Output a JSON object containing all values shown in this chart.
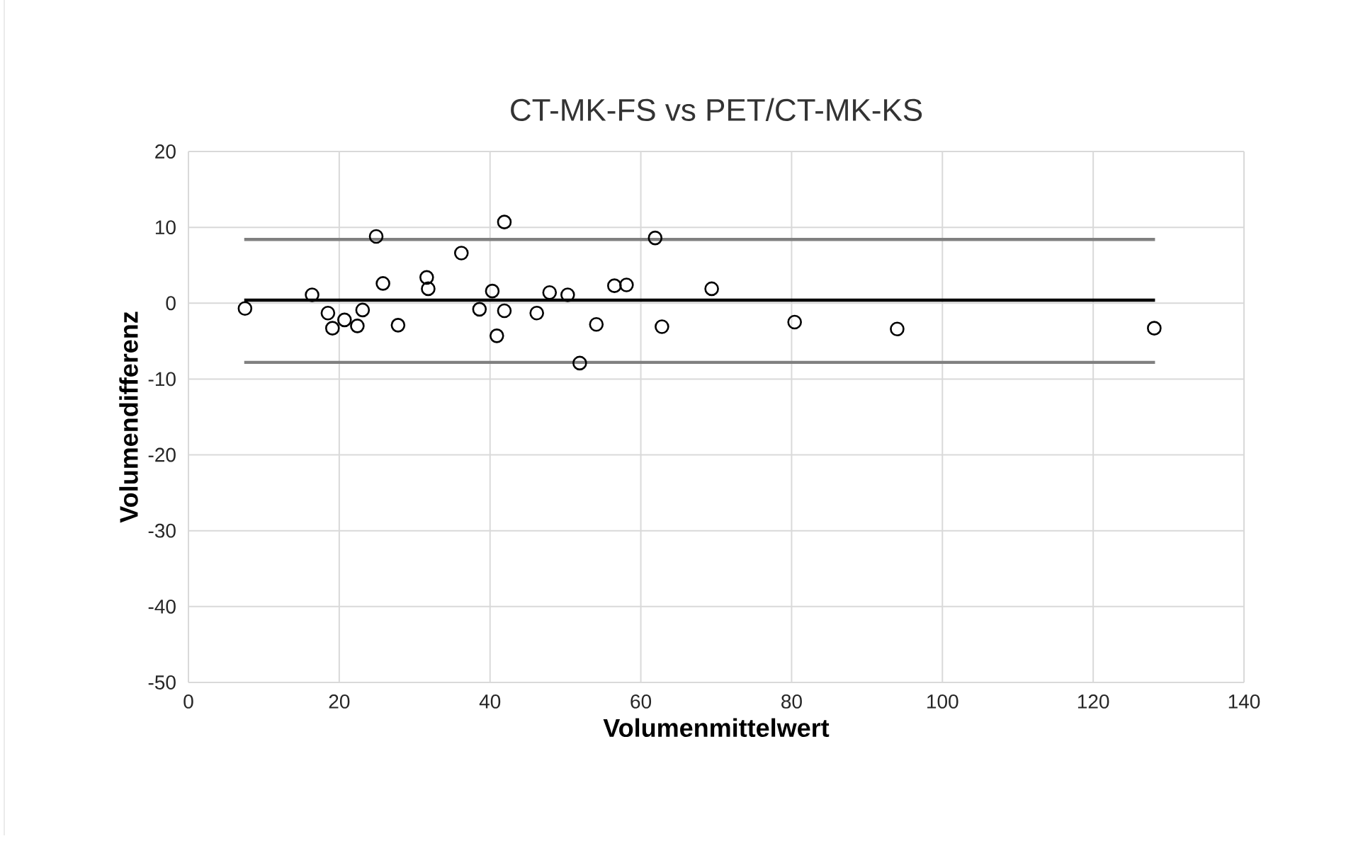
{
  "chart_data": {
    "type": "scatter",
    "title": "CT-MK-FS vs PET/CT-MK-KS",
    "xlabel": "Volumenmittelwert",
    "ylabel": "Volumendifferenz",
    "xlim": [
      0,
      140
    ],
    "ylim": [
      -50,
      20
    ],
    "xticks": [
      0,
      20,
      40,
      60,
      80,
      100,
      120,
      140
    ],
    "yticks": [
      -50,
      -40,
      -30,
      -20,
      -10,
      0,
      10,
      20
    ],
    "grid": true,
    "marker": "circle",
    "series": [
      {
        "color": "#000000",
        "x": [
          7.5,
          16.4,
          18.5,
          19.1,
          20.7,
          22.4,
          23.1,
          24.9,
          25.8,
          27.8,
          31.6,
          31.8,
          36.2,
          38.6,
          40.3,
          41.9,
          41.9,
          40.9,
          46.2,
          47.9,
          50.3,
          51.9,
          54.1,
          56.5,
          58.1,
          61.9,
          62.8,
          69.4,
          80.4,
          94.0,
          128.1
        ],
        "values": [
          -0.7,
          1.1,
          -1.3,
          -3.3,
          -2.2,
          -3.0,
          -0.9,
          8.8,
          2.6,
          -2.9,
          3.4,
          1.9,
          6.6,
          -0.8,
          1.6,
          10.7,
          -1.0,
          -4.3,
          -1.3,
          1.4,
          1.1,
          -7.9,
          -2.8,
          2.3,
          2.4,
          8.6,
          -3.1,
          1.9,
          -2.5,
          -3.4,
          -3.3
        ]
      },
      {
        "type": "line",
        "color": "#808080",
        "marker": "none",
        "x": [
          7.4,
          128.2
        ],
        "values": [
          8.4,
          8.4
        ]
      },
      {
        "type": "line",
        "color": "#000000",
        "marker": "none",
        "x": [
          7.4,
          128.2
        ],
        "values": [
          0.4,
          0.4
        ]
      },
      {
        "type": "line",
        "color": "#808080",
        "marker": "none",
        "x": [
          7.4,
          128.2
        ],
        "values": [
          -7.8,
          -7.8
        ]
      }
    ]
  }
}
